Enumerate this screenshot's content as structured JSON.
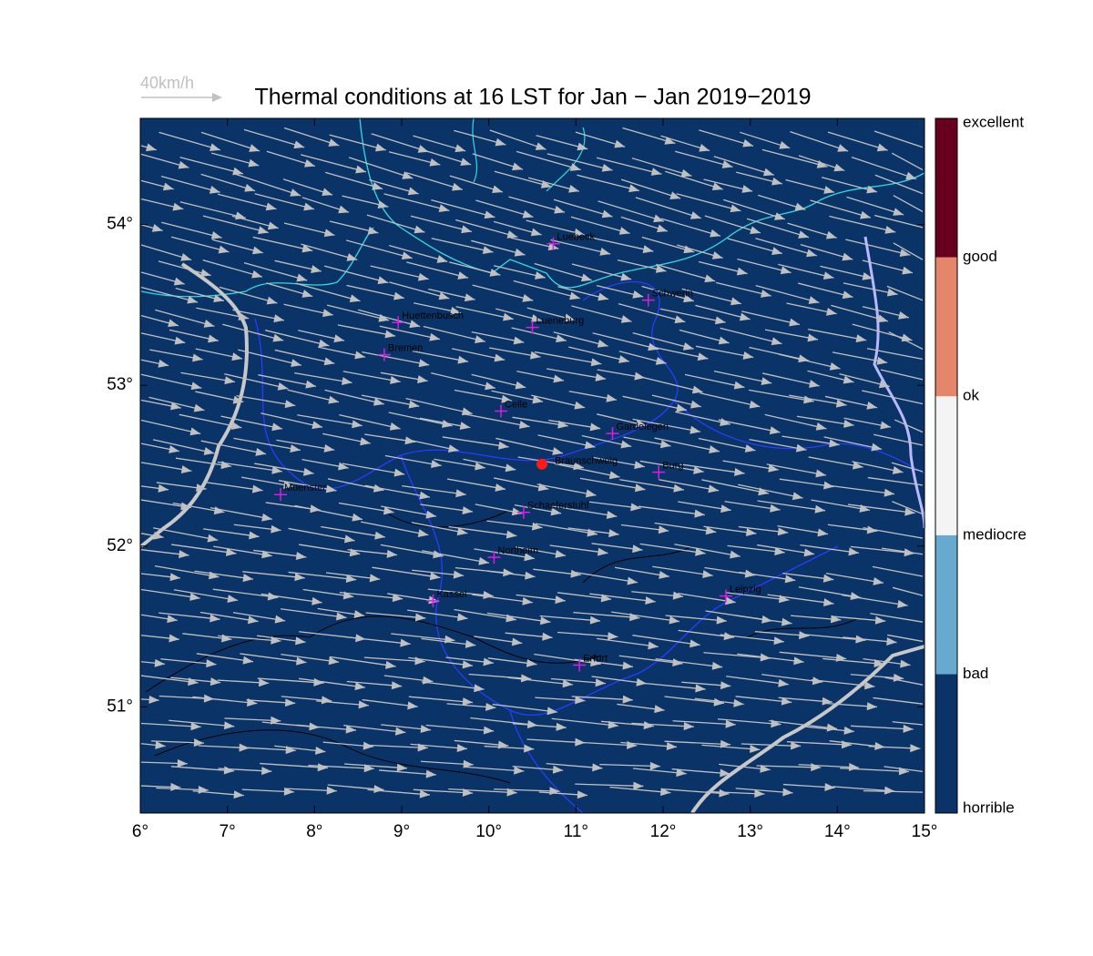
{
  "chart_data": {
    "type": "map",
    "title": "Thermal conditions at 16 LST for Jan − Jan  2019−2019",
    "reference_arrow_label": "40km/h",
    "background": "#0a3368",
    "xlim": [
      6,
      15
    ],
    "ylim": [
      50.34,
      54.66
    ],
    "xticks": [
      {
        "value": 6,
        "label": "6°"
      },
      {
        "value": 7,
        "label": "7°"
      },
      {
        "value": 8,
        "label": "8°"
      },
      {
        "value": 9,
        "label": "9°"
      },
      {
        "value": 10,
        "label": "10°"
      },
      {
        "value": 11,
        "label": "11°"
      },
      {
        "value": 12,
        "label": "12°"
      },
      {
        "value": 13,
        "label": "13°"
      },
      {
        "value": 14,
        "label": "14°"
      },
      {
        "value": 15,
        "label": "15°"
      }
    ],
    "yticks": [
      {
        "value": 51,
        "label": "51°"
      },
      {
        "value": 52,
        "label": "52°"
      },
      {
        "value": 53,
        "label": "53°"
      },
      {
        "value": 54,
        "label": "54°"
      }
    ],
    "cities": [
      {
        "name": "Luebeck",
        "lon": 10.74,
        "lat": 53.88,
        "marker": "plus"
      },
      {
        "name": "Schwerin",
        "lon": 11.83,
        "lat": 53.53,
        "marker": "plus"
      },
      {
        "name": "Huettenbusch",
        "lon": 8.96,
        "lat": 53.39,
        "marker": "plus"
      },
      {
        "name": "Lueneburg",
        "lon": 10.5,
        "lat": 53.36,
        "marker": "plus"
      },
      {
        "name": "Bremen",
        "lon": 8.8,
        "lat": 53.19,
        "marker": "plus"
      },
      {
        "name": "Celle",
        "lon": 10.14,
        "lat": 52.84,
        "marker": "plus"
      },
      {
        "name": "Gardelegen",
        "lon": 11.42,
        "lat": 52.7,
        "marker": "plus"
      },
      {
        "name": "Braunschweig",
        "lon": 10.61,
        "lat": 52.51,
        "marker": "dot"
      },
      {
        "name": "Burg",
        "lon": 11.95,
        "lat": 52.46,
        "marker": "plus"
      },
      {
        "name": "Muenster",
        "lon": 7.61,
        "lat": 52.32,
        "marker": "plus"
      },
      {
        "name": "Schaeferstuhl",
        "lon": 10.4,
        "lat": 52.21,
        "marker": "plus"
      },
      {
        "name": "Northeim",
        "lon": 10.06,
        "lat": 51.93,
        "marker": "plus"
      },
      {
        "name": "Kassel",
        "lon": 9.36,
        "lat": 51.66,
        "marker": "plus"
      },
      {
        "name": "Leipzig",
        "lon": 12.72,
        "lat": 51.69,
        "marker": "plus"
      },
      {
        "name": "Erfurt",
        "lon": 11.04,
        "lat": 51.26,
        "marker": "plus"
      }
    ],
    "colorbar": {
      "labels": [
        "horrible",
        "bad",
        "mediocre",
        "ok",
        "good",
        "excellent"
      ],
      "colors": [
        "#0a3368",
        "#67a9cf",
        "#f4f4f4",
        "#e5866a",
        "#67001f"
      ]
    }
  }
}
